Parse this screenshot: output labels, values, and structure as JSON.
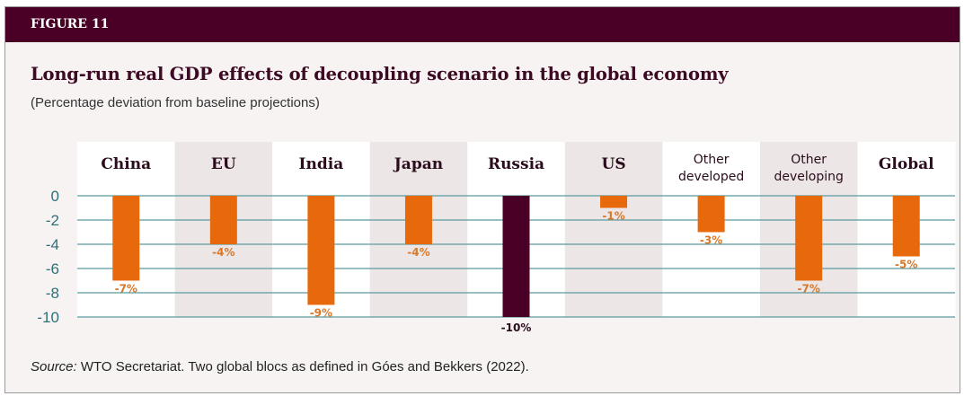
{
  "header": {
    "figure_label": "FIGURE 11"
  },
  "source": {
    "prefix": "Source:",
    "text": " WTO Secretariat. Two global blocs as defined in Góes and Bekkers (2022)."
  },
  "colors": {
    "bar": "#e8690b",
    "highlight": "#4a0026",
    "grid": "#5b9a9f",
    "tick": "#2f6f78",
    "band_alt": "#ece7e6"
  },
  "chart_data": {
    "type": "bar",
    "title": "Long-run real GDP effects of decoupling scenario in the global economy",
    "subtitle": "(Percentage deviation from baseline projections)",
    "categories": [
      [
        "China"
      ],
      [
        "EU"
      ],
      [
        "India"
      ],
      [
        "Japan"
      ],
      [
        "Russia"
      ],
      [
        "US"
      ],
      [
        "Other",
        "developed"
      ],
      [
        "Other",
        "developing"
      ],
      [
        "Global"
      ]
    ],
    "values": [
      -7,
      -4,
      -9,
      -4,
      -10,
      -1,
      -3,
      -7,
      -5
    ],
    "data_labels": [
      "-7%",
      "-4%",
      "-9%",
      "-4%",
      "-10%",
      "-1%",
      "-3%",
      "-7%",
      "-5%"
    ],
    "highlight_index": 4,
    "ylim": [
      -10,
      0
    ],
    "yticks": [
      0,
      -2,
      -4,
      -6,
      -8,
      -10
    ],
    "grid": true,
    "xlabel": "",
    "ylabel": ""
  }
}
